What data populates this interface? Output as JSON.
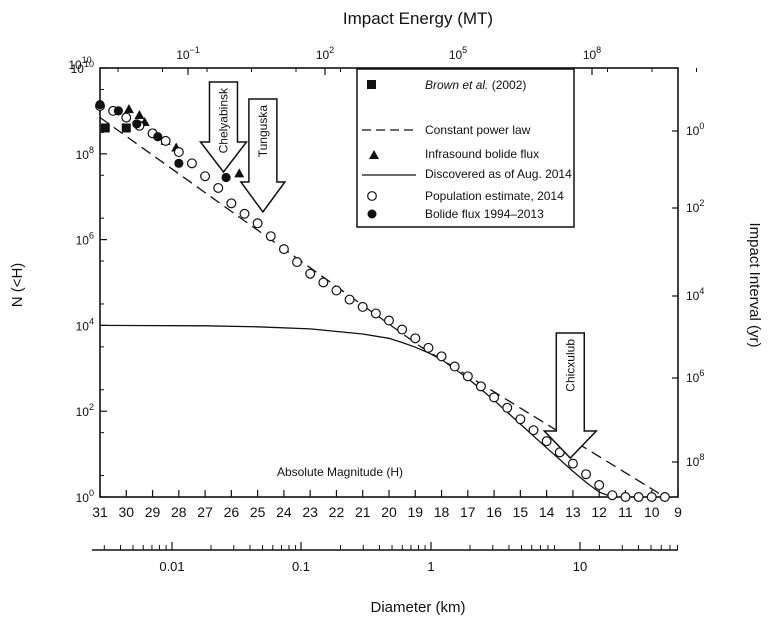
{
  "chart_data": {
    "type": "scatter",
    "top_axis": {
      "label": "Impact Energy (MT)",
      "scale": "log",
      "ticks": [
        {
          "text": "10",
          "exp": "−1"
        },
        {
          "text": "10",
          "exp": "2"
        },
        {
          "text": "10",
          "exp": "5"
        },
        {
          "text": "10",
          "exp": "8"
        }
      ]
    },
    "left_axis": {
      "label": "N (<H)",
      "scale": "log",
      "ylim": [
        1,
        10000000000.0
      ],
      "ticks": [
        {
          "text": "10",
          "exp": "0",
          "value": 1
        },
        {
          "text": "10",
          "exp": "2",
          "value": 100
        },
        {
          "text": "10",
          "exp": "4",
          "value": 10000
        },
        {
          "text": "10",
          "exp": "6",
          "value": 1000000
        },
        {
          "text": "10",
          "exp": "8",
          "value": 100000000
        },
        {
          "text": "10",
          "exp": "10",
          "value": 10000000000
        }
      ]
    },
    "right_axis": {
      "label": "Impact Interval (yr)",
      "scale": "log",
      "ticks": [
        {
          "text": "10",
          "exp": "0"
        },
        {
          "text": "10",
          "exp": "2"
        },
        {
          "text": "10",
          "exp": "4"
        },
        {
          "text": "10",
          "exp": "6"
        },
        {
          "text": "10",
          "exp": "8"
        }
      ]
    },
    "x_axis": {
      "label": "Absolute Magnitude (H)",
      "xlim": [
        31,
        9
      ],
      "ticks": [
        "31",
        "30",
        "29",
        "28",
        "27",
        "26",
        "25",
        "24",
        "23",
        "22",
        "21",
        "20",
        "19",
        "18",
        "17",
        "16",
        "15",
        "14",
        "13",
        "12",
        "11",
        "10",
        "9"
      ]
    },
    "diameter_axis": {
      "label": "Diameter (km)",
      "ticks": [
        "0.01",
        "0.1",
        "1",
        "10"
      ]
    },
    "legend": {
      "position": "top-right",
      "entries": [
        {
          "label": "Brown et al.",
          "suffix": " (2002)",
          "marker": "filled-square"
        },
        {
          "label": "Constant power law",
          "marker": "dashed-line"
        },
        {
          "label": "Infrasound bolide flux",
          "marker": "filled-triangle"
        },
        {
          "label": "Discovered as of Aug. 2014",
          "marker": "solid-line"
        },
        {
          "label": "Population estimate, 2014",
          "marker": "open-circle"
        },
        {
          "label": "Bolide flux 1994–2013",
          "marker": "filled-circle"
        }
      ]
    },
    "annotations": [
      {
        "label": "Chelyabinsk",
        "H": 26.3
      },
      {
        "label": "Tunguska",
        "H": 24.8
      },
      {
        "label": "Chicxulub",
        "H": 13.1
      }
    ],
    "series": [
      {
        "name": "Brown et al. (2002)",
        "style": "filled-square",
        "points": [
          [
            30.8,
            400000000.0
          ],
          [
            30.0,
            400000000.0
          ]
        ]
      },
      {
        "name": "Constant power law",
        "style": "dashed-line",
        "points": [
          [
            31,
            700000000.0
          ],
          [
            18.8,
            3200
          ],
          [
            9.5,
            0.6
          ]
        ]
      },
      {
        "name": "Infrasound bolide flux",
        "style": "filled-triangle",
        "points": [
          [
            29.9,
            1100000000.0
          ],
          [
            29.5,
            800000000.0
          ],
          [
            29.3,
            550000000.0
          ],
          [
            28.9,
            300000000.0
          ],
          [
            28.5,
            200000000.0
          ],
          [
            28.1,
            140000000.0
          ],
          [
            25.7,
            35000000.0
          ]
        ]
      },
      {
        "name": "Discovered as of Aug. 2014",
        "style": "solid-line",
        "points": [
          [
            31,
            10000
          ],
          [
            27,
            9800
          ],
          [
            25,
            9300
          ],
          [
            23,
            8300
          ],
          [
            21,
            6300
          ],
          [
            20,
            5000
          ],
          [
            19.5,
            4000
          ],
          [
            19,
            3100
          ],
          [
            18.5,
            2300
          ],
          [
            18,
            1600
          ],
          [
            17,
            580
          ],
          [
            16,
            180
          ],
          [
            15,
            50
          ],
          [
            14,
            14
          ],
          [
            13,
            4
          ],
          [
            12.5,
            2.2
          ],
          [
            12,
            1.3
          ],
          [
            11.5,
            0.8
          ]
        ]
      },
      {
        "name": "Population estimate, 2014",
        "style": "open-circle",
        "points": [
          [
            31.0,
            1300000000.0
          ],
          [
            30.5,
            1000000000.0
          ],
          [
            30.0,
            700000000.0
          ],
          [
            29.5,
            450000000.0
          ],
          [
            29.0,
            300000000.0
          ],
          [
            28.5,
            200000000.0
          ],
          [
            28.0,
            110000000.0
          ],
          [
            27.5,
            60000000.0
          ],
          [
            27.0,
            30000000.0
          ],
          [
            26.5,
            16000000.0
          ],
          [
            26.0,
            7000000.0
          ],
          [
            25.5,
            4000000.0
          ],
          [
            25.0,
            2400000.0
          ],
          [
            24.5,
            1200000.0
          ],
          [
            24.0,
            600000.0
          ],
          [
            23.5,
            300000.0
          ],
          [
            23.0,
            160000.0
          ],
          [
            22.5,
            100000.0
          ],
          [
            22.0,
            65000.0
          ],
          [
            21.5,
            40000.0
          ],
          [
            21.0,
            27000.0
          ],
          [
            20.5,
            19000.0
          ],
          [
            20.0,
            13000.0
          ],
          [
            19.5,
            8000.0
          ],
          [
            19.0,
            5000.0
          ],
          [
            18.5,
            3000.0
          ],
          [
            18.0,
            1900.0
          ],
          [
            17.5,
            1100.0
          ],
          [
            17.0,
            650
          ],
          [
            16.5,
            380
          ],
          [
            16.0,
            210
          ],
          [
            15.5,
            120
          ],
          [
            15.0,
            65
          ],
          [
            14.5,
            36
          ],
          [
            14.0,
            20
          ],
          [
            13.5,
            11
          ],
          [
            13.0,
            6
          ],
          [
            12.5,
            3.4
          ],
          [
            12.0,
            1.9
          ],
          [
            11.5,
            1.1
          ],
          [
            11.0,
            1
          ],
          [
            10.5,
            1
          ],
          [
            10.0,
            1
          ],
          [
            9.5,
            1
          ]
        ]
      },
      {
        "name": "Bolide flux 1994–2013",
        "style": "filled-circle",
        "points": [
          [
            31.0,
            1400000000.0
          ],
          [
            30.3,
            1000000000.0
          ],
          [
            29.6,
            500000000.0
          ],
          [
            28.8,
            250000000.0
          ],
          [
            28.0,
            60000000.0
          ],
          [
            26.2,
            28000000.0
          ]
        ]
      }
    ]
  }
}
